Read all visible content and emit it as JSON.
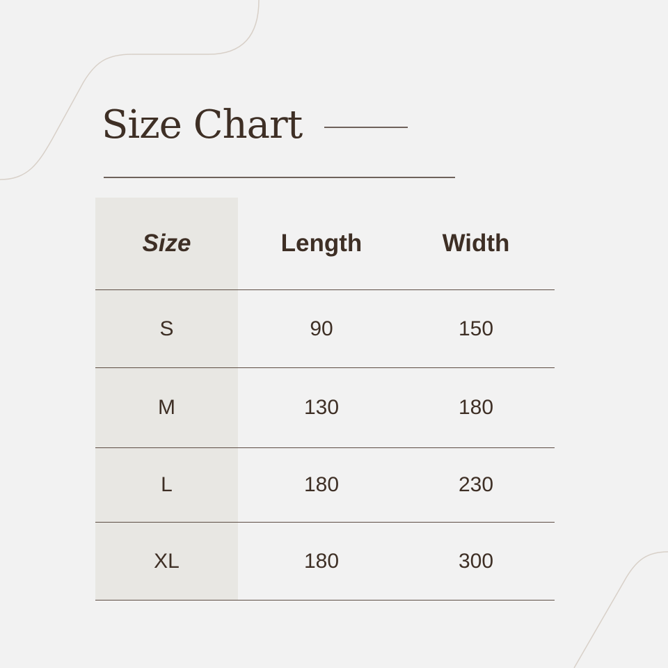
{
  "title": "Size Chart",
  "colors": {
    "background": "#f2f2f2",
    "text": "#3e2f25",
    "size_column": "#e8e7e3",
    "lines": "#5d4d44"
  },
  "table": {
    "headers": [
      "Size",
      "Length",
      "Width"
    ],
    "rows": [
      [
        "S",
        "90",
        "150"
      ],
      [
        "M",
        "130",
        "180"
      ],
      [
        "L",
        "180",
        "230"
      ],
      [
        "XL",
        "180",
        "300"
      ]
    ]
  }
}
